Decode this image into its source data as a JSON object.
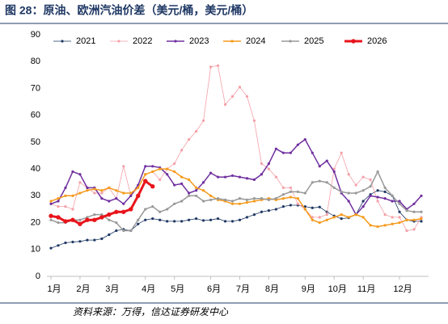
{
  "chart_data": {
    "type": "line",
    "title": "图 28：原油、欧洲汽油价差（美元/桶，美元/桶）",
    "source": "资料来源：万得，信达证券研发中心",
    "categories": [
      "1月",
      null,
      null,
      null,
      "2月",
      null,
      null,
      null,
      "3月",
      null,
      null,
      null,
      null,
      "4月",
      null,
      null,
      null,
      "5月",
      null,
      null,
      null,
      null,
      "6月",
      null,
      null,
      null,
      "7月",
      null,
      null,
      null,
      "8月",
      null,
      null,
      null,
      null,
      "9月",
      null,
      null,
      null,
      "10月",
      null,
      null,
      null,
      "11月",
      null,
      null,
      null,
      null,
      "12月",
      null,
      null,
      null
    ],
    "ylim": [
      0,
      90
    ],
    "yticks": [
      0,
      10,
      20,
      30,
      40,
      50,
      60,
      70,
      80,
      90
    ],
    "grid": false,
    "series": [
      {
        "name": "2021",
        "color": "#1f3864",
        "line_width": 0.8,
        "values": [
          10.5,
          11.5,
          12.5,
          12.8,
          13,
          13.5,
          13.5,
          14,
          15.5,
          17,
          17.5,
          17,
          19.5,
          21,
          21.5,
          21,
          20.5,
          20.5,
          20.5,
          21,
          21.5,
          20.8,
          21,
          21.5,
          20.5,
          20.5,
          21,
          22,
          23,
          24,
          24.5,
          25,
          26,
          26.5,
          26.5,
          26,
          25.5,
          25.8,
          24,
          22.5,
          21.5,
          21.8,
          23,
          28,
          30.5,
          32,
          31.5,
          30,
          24,
          21,
          20.5,
          20.5
        ]
      },
      {
        "name": "2022",
        "color": "#f4a0a8",
        "line_width": 0.8,
        "values": [
          27,
          26,
          26,
          25,
          35,
          33,
          31,
          31,
          33,
          29,
          41,
          30,
          33,
          38,
          39,
          36,
          40,
          42,
          47,
          51,
          54,
          58,
          78,
          78.5,
          64,
          67,
          70.5,
          67,
          58,
          42,
          40,
          37,
          33,
          33,
          27,
          25,
          22,
          22,
          23,
          40,
          46,
          38,
          34,
          37,
          36,
          28,
          23,
          22,
          22,
          17,
          17.5,
          22
        ]
      },
      {
        "name": "2023",
        "color": "#7030a0",
        "line_width": 1.5,
        "values": [
          27,
          28,
          33,
          39,
          38,
          33,
          33,
          29,
          28,
          29,
          27,
          30,
          34,
          41,
          41,
          40.5,
          38,
          34,
          34.5,
          31,
          32,
          35,
          38.5,
          37,
          37,
          37.5,
          37,
          36.5,
          36,
          38,
          42,
          47.5,
          46,
          46,
          49,
          51,
          46,
          41,
          43,
          39,
          31,
          28,
          23,
          26,
          30,
          29.5,
          29,
          28,
          28,
          25,
          27,
          30
        ]
      },
      {
        "name": "2024",
        "color": "#f59a1b",
        "line_width": 1.5,
        "values": [
          28,
          29,
          30,
          30,
          31,
          32,
          32.5,
          32,
          33,
          32,
          31,
          31,
          33,
          38,
          39,
          40,
          40,
          39,
          37,
          36,
          33,
          32,
          30,
          28.5,
          28,
          27,
          27,
          27.5,
          28,
          28.5,
          29,
          28.5,
          29,
          29.5,
          29,
          25,
          21,
          20,
          21,
          22,
          23,
          22,
          23,
          22,
          19,
          18.5,
          19,
          19.5,
          20,
          21,
          21,
          21.5
        ]
      },
      {
        "name": "2025",
        "color": "#999999",
        "line_width": 1.5,
        "values": [
          21,
          20,
          20,
          21,
          21,
          22,
          23,
          23,
          21,
          20,
          17,
          17,
          21,
          25,
          26,
          24,
          25,
          27,
          28,
          30,
          30,
          28,
          28.5,
          29,
          28.5,
          28,
          29,
          28.5,
          29,
          29,
          28.5,
          29,
          30.5,
          31.5,
          31.5,
          31,
          35,
          35.5,
          35,
          33,
          31.5,
          31,
          31,
          32,
          33.5,
          39,
          33,
          30,
          27,
          24.5,
          24,
          24
        ]
      },
      {
        "name": "2026",
        "color": "#e8141b",
        "line_width": 3,
        "values": [
          22.5,
          22,
          20.5,
          21,
          19.5,
          21,
          21,
          22,
          23,
          24,
          24,
          25,
          30,
          35.5,
          33.5,
          null,
          null,
          null,
          null,
          null,
          null,
          null,
          null,
          null,
          null,
          null,
          null,
          null,
          null,
          null,
          null,
          null,
          null,
          null,
          null,
          null,
          null,
          null,
          null,
          null,
          null,
          null,
          null,
          null,
          null,
          null,
          null,
          null,
          null,
          null,
          null,
          null
        ]
      }
    ]
  }
}
